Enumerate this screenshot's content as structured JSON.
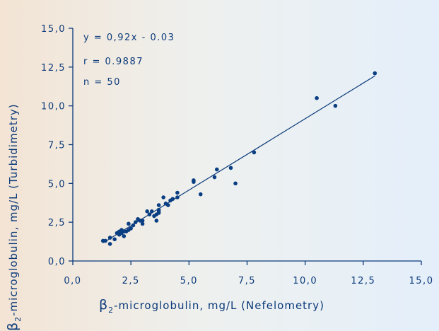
{
  "colors": {
    "ink": "#0b3a7a",
    "point": "#0a3e82"
  },
  "chart_data": {
    "type": "scatter",
    "x_ticks": [
      "0,0",
      "2,5",
      "5,0",
      "7,5",
      "10,0",
      "12,5",
      "15,0"
    ],
    "y_ticks": [
      "0,0",
      "2,5",
      "5,0",
      "7,5",
      "10,0",
      "12,5",
      "15,0"
    ],
    "xlim": [
      0,
      15
    ],
    "ylim": [
      0,
      15
    ],
    "xlabel": {
      "prefix": "β",
      "subscript": "2",
      "main": "-microglobulin, mg/L (Nefelometry)"
    },
    "ylabel": {
      "prefix": "β",
      "subscript": "2",
      "main": "-microglobulin, mg/L (Turbidimetry)"
    },
    "annotations": [
      "y = 0,92x - 0.03",
      "r = 0.9887",
      "n = 50"
    ],
    "regression": {
      "slope": 0.92,
      "intercept": -0.03,
      "x_range": [
        1.3,
        13.0
      ]
    },
    "points": [
      [
        1.3,
        1.3
      ],
      [
        1.4,
        1.3
      ],
      [
        1.6,
        1.1
      ],
      [
        1.6,
        1.5
      ],
      [
        1.8,
        1.4
      ],
      [
        1.9,
        1.8
      ],
      [
        2.0,
        1.9
      ],
      [
        2.0,
        1.7
      ],
      [
        2.1,
        2.0
      ],
      [
        2.1,
        1.8
      ],
      [
        2.2,
        1.6
      ],
      [
        2.2,
        1.9
      ],
      [
        2.3,
        1.9
      ],
      [
        2.4,
        2.0
      ],
      [
        2.4,
        2.4
      ],
      [
        2.5,
        2.1
      ],
      [
        2.7,
        2.5
      ],
      [
        2.8,
        2.7
      ],
      [
        3.0,
        2.4
      ],
      [
        3.0,
        2.6
      ],
      [
        3.2,
        3.2
      ],
      [
        3.4,
        3.2
      ],
      [
        3.5,
        2.9
      ],
      [
        3.6,
        3.0
      ],
      [
        3.6,
        2.6
      ],
      [
        3.7,
        3.1
      ],
      [
        3.7,
        3.2
      ],
      [
        3.7,
        3.3
      ],
      [
        3.7,
        3.6
      ],
      [
        3.9,
        4.1
      ],
      [
        4.0,
        3.7
      ],
      [
        4.1,
        3.6
      ],
      [
        4.2,
        3.9
      ],
      [
        4.5,
        4.1
      ],
      [
        4.5,
        4.4
      ],
      [
        5.2,
        5.1
      ],
      [
        5.2,
        5.2
      ],
      [
        5.5,
        4.3
      ],
      [
        6.1,
        5.4
      ],
      [
        6.2,
        5.9
      ],
      [
        6.8,
        6.0
      ],
      [
        7.0,
        5.0
      ],
      [
        7.8,
        7.0
      ],
      [
        10.5,
        10.5
      ],
      [
        11.3,
        10.0
      ],
      [
        13.0,
        12.1
      ],
      [
        3.3,
        3.0
      ],
      [
        2.6,
        2.3
      ],
      [
        2.9,
        2.6
      ],
      [
        4.3,
        4.0
      ]
    ]
  }
}
